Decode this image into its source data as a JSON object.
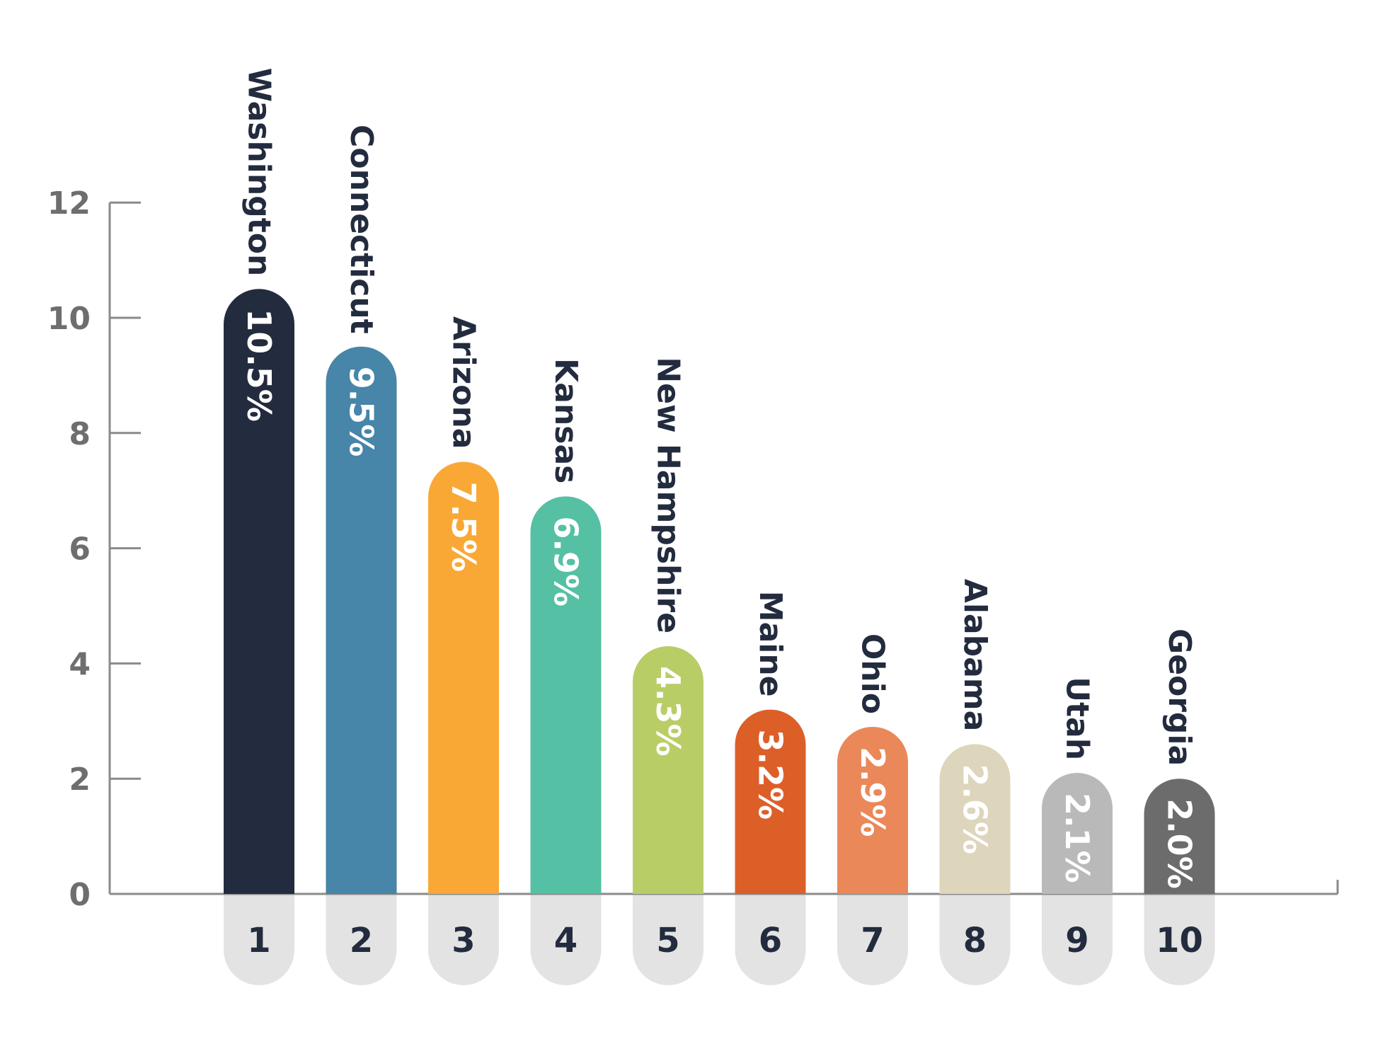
{
  "chart_data": {
    "type": "bar",
    "categories": [
      "1",
      "2",
      "3",
      "4",
      "5",
      "6",
      "7",
      "8",
      "9",
      "10"
    ],
    "names": [
      "Washington",
      "Connecticut",
      "Arizona",
      "Kansas",
      "New Hampshire",
      "Maine",
      "Ohio",
      "Alabama",
      "Utah",
      "Georgia"
    ],
    "values": [
      10.5,
      9.5,
      7.5,
      6.9,
      4.3,
      3.2,
      2.9,
      2.6,
      2.1,
      2.0
    ],
    "value_labels": [
      "10.5%",
      "9.5%",
      "7.5%",
      "6.9%",
      "4.3%",
      "3.2%",
      "2.9%",
      "2.6%",
      "2.1%",
      "2.0%"
    ],
    "colors": [
      "#232b3e",
      "#4785a9",
      "#f9a836",
      "#55c0a4",
      "#b9cd67",
      "#dd5f28",
      "#ea885a",
      "#ddd5bc",
      "#b9b9b9",
      "#6c6c6c"
    ],
    "yticks": [
      0,
      2,
      4,
      6,
      8,
      10,
      12
    ],
    "ylim": [
      0,
      12
    ],
    "title": "",
    "xlabel": "",
    "ylabel": "",
    "grid": false,
    "legend": "none"
  },
  "colors": {
    "axis": "#8a8a8a",
    "tick_text": "#6e6e6e",
    "name_text": "#232b3e",
    "rank_pill": "#e3e3e3"
  }
}
